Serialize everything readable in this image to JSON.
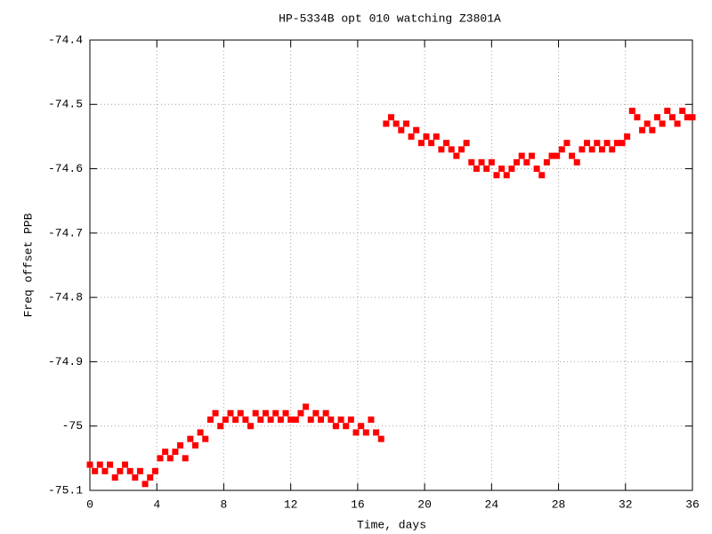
{
  "chart_data": {
    "type": "scatter",
    "title": "HP-5334B opt 010 watching Z3801A",
    "x_label": "Time, days",
    "y_label": "Freq offset PPB",
    "color": "#ff0000",
    "grid": true,
    "xlim": [
      0,
      36
    ],
    "xticks": [
      0,
      4,
      8,
      12,
      16,
      20,
      24,
      28,
      32,
      36
    ],
    "ylim": [
      -75.1,
      -74.4
    ],
    "yticks": [
      -75.1,
      -75,
      -74.9,
      -74.8,
      -74.7,
      -74.6,
      -74.5,
      -74.4
    ],
    "x": [
      0,
      0.3,
      0.6,
      0.9,
      1.2,
      1.5,
      1.8,
      2.1,
      2.4,
      2.7,
      3,
      3.3,
      3.6,
      3.9,
      4.2,
      4.5,
      4.8,
      5.1,
      5.4,
      5.7,
      6,
      6.3,
      6.6,
      6.9,
      7.2,
      7.5,
      7.8,
      8.1,
      8.4,
      8.7,
      9,
      9.3,
      9.6,
      9.9,
      10.2,
      10.5,
      10.8,
      11.1,
      11.4,
      11.7,
      12,
      12.3,
      12.6,
      12.9,
      13.2,
      13.5,
      13.8,
      14.1,
      14.4,
      14.7,
      15,
      15.3,
      15.6,
      15.9,
      16.2,
      16.5,
      16.8,
      17.1,
      17.4,
      17.7,
      18,
      18.3,
      18.6,
      18.9,
      19.2,
      19.5,
      19.8,
      20.1,
      20.4,
      20.7,
      21,
      21.3,
      21.6,
      21.9,
      22.2,
      22.5,
      22.8,
      23.1,
      23.4,
      23.7,
      24,
      24.3,
      24.6,
      24.9,
      25.2,
      25.5,
      25.8,
      26.1,
      26.4,
      26.7,
      27,
      27.3,
      27.6,
      27.9,
      28.2,
      28.5,
      28.8,
      29.1,
      29.4,
      29.7,
      30,
      30.3,
      30.6,
      30.9,
      31.2,
      31.5,
      31.8,
      32.1,
      32.4,
      32.7,
      33,
      33.3,
      33.6,
      33.9,
      34.2,
      34.5,
      34.8,
      35.1,
      35.4,
      35.7,
      36
    ],
    "values": [
      -75.06,
      -75.07,
      -75.06,
      -75.07,
      -75.06,
      -75.08,
      -75.07,
      -75.06,
      -75.07,
      -75.08,
      -75.07,
      -75.09,
      -75.08,
      -75.07,
      -75.05,
      -75.04,
      -75.05,
      -75.04,
      -75.03,
      -75.05,
      -75.02,
      -75.03,
      -75.01,
      -75.02,
      -74.99,
      -74.98,
      -75,
      -74.99,
      -74.98,
      -74.99,
      -74.98,
      -74.99,
      -75,
      -74.98,
      -74.99,
      -74.98,
      -74.99,
      -74.98,
      -74.99,
      -74.98,
      -74.99,
      -74.99,
      -74.98,
      -74.97,
      -74.99,
      -74.98,
      -74.99,
      -74.98,
      -74.99,
      -75,
      -74.99,
      -75,
      -74.99,
      -75.01,
      -75,
      -75.01,
      -74.99,
      -75.01,
      -75.02,
      -74.53,
      -74.52,
      -74.53,
      -74.54,
      -74.53,
      -74.55,
      -74.54,
      -74.56,
      -74.55,
      -74.56,
      -74.55,
      -74.57,
      -74.56,
      -74.57,
      -74.58,
      -74.57,
      -74.56,
      -74.59,
      -74.6,
      -74.59,
      -74.6,
      -74.59,
      -74.61,
      -74.6,
      -74.61,
      -74.6,
      -74.59,
      -74.58,
      -74.59,
      -74.58,
      -74.6,
      -74.61,
      -74.59,
      -74.58,
      -74.58,
      -74.57,
      -74.56,
      -74.58,
      -74.59,
      -74.57,
      -74.56,
      -74.57,
      -74.56,
      -74.57,
      -74.56,
      -74.57,
      -74.56,
      -74.56,
      -74.55,
      -74.51,
      -74.52,
      -74.54,
      -74.53,
      -74.54,
      -74.52,
      -74.53,
      -74.51,
      -74.52,
      -74.53,
      -74.51,
      -74.52,
      -74.52
    ]
  }
}
